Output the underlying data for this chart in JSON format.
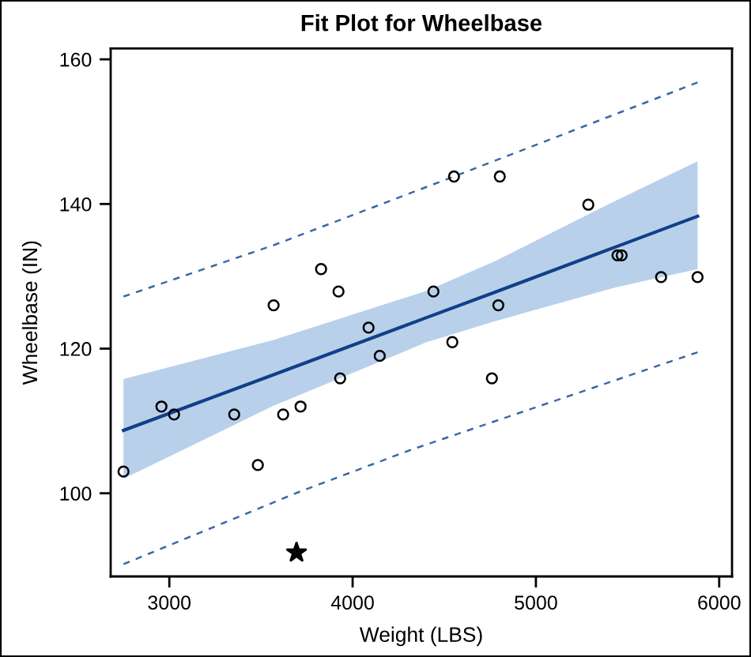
{
  "chart_data": {
    "type": "scatter",
    "title": "Fit Plot for Wheelbase",
    "xlabel": "Weight (LBS)",
    "ylabel": "Wheelbase (IN)",
    "xlim": [
      2680,
      6070
    ],
    "ylim": [
      88.5,
      161.5
    ],
    "xticks": [
      3000,
      4000,
      5000,
      6000
    ],
    "yticks": [
      100,
      120,
      140,
      160
    ],
    "series": [
      {
        "type": "line",
        "color": "#123f8a",
        "line_style": "solid",
        "marker": "none",
        "x": [
          2750,
          3569,
          4404,
          4777,
          5439,
          5882
        ],
        "values": [
          108.7,
          116.4,
          124.3,
          127.8,
          134.1,
          138.3
        ],
        "lower": [
          102.0,
          112.1,
          120.9,
          123.8,
          128.5,
          131.0
        ],
        "upper": [
          115.8,
          121.2,
          128.0,
          132.1,
          140.5,
          145.9
        ]
      },
      {
        "type": "line",
        "color": "#3d68a8",
        "line_style": "dashed",
        "marker": "none",
        "x": [
          2750,
          3569,
          4553,
          5882
        ],
        "values": [
          127.2,
          134.3,
          143.8,
          156.8
        ]
      },
      {
        "type": "line",
        "color": "#3d68a8",
        "line_style": "dashed",
        "marker": "none",
        "x": [
          2750,
          3699,
          4317,
          5882
        ],
        "values": [
          90.2,
          100.1,
          106.0,
          119.5
        ]
      },
      {
        "color": "#000000",
        "marker": "circle",
        "x": [
          2750,
          2957,
          3026,
          3354,
          3483,
          3569,
          3621,
          3716,
          3828,
          3923,
          3932,
          4087,
          4148,
          4441,
          4553,
          4544,
          4760,
          4795,
          4803,
          5286,
          5445,
          5468,
          5683,
          5882
        ],
        "values": [
          103.0,
          112.0,
          110.9,
          110.9,
          103.9,
          126.0,
          110.9,
          112.0,
          131.0,
          127.9,
          115.9,
          122.9,
          119.0,
          127.9,
          143.8,
          120.9,
          115.9,
          126.0,
          143.8,
          139.9,
          132.9,
          132.9,
          129.9,
          129.9
        ]
      },
      {
        "color": "#000000",
        "marker": "star",
        "x": [
          3694
        ],
        "values": [
          91.8
        ]
      }
    ]
  }
}
